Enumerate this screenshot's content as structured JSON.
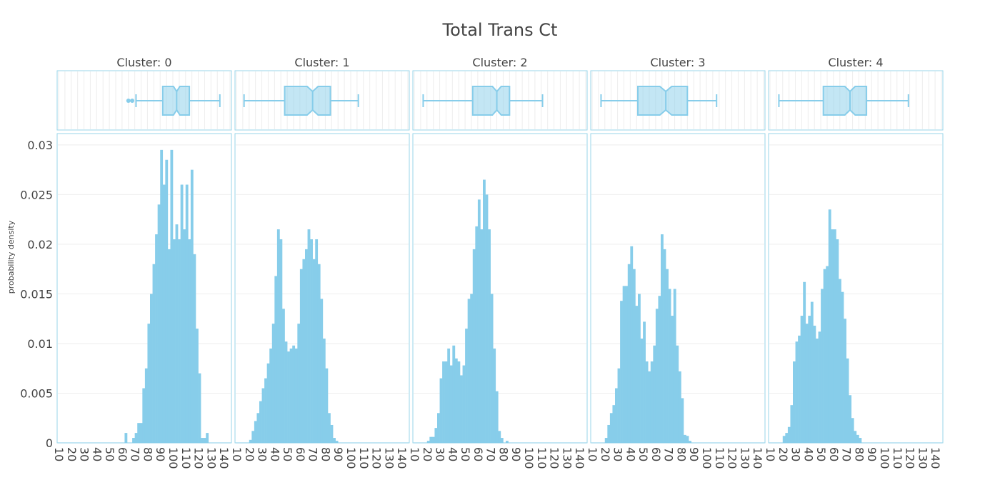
{
  "chart_data": {
    "type": "histogram",
    "title": "Total Trans Ct",
    "ylabel": "probability density",
    "xlabel": "",
    "bar_color": "#87cdea",
    "frame_color": "#99d6ea",
    "grid_color": "#eeeeee",
    "xlim": [
      10,
      145
    ],
    "ylim": [
      0,
      0.031
    ],
    "x_ticks": [
      "10",
      "20",
      "30",
      "40",
      "50",
      "60",
      "70",
      "80",
      "90",
      "100",
      "110",
      "120",
      "130",
      "140"
    ],
    "y_ticks": [
      "0",
      "0.005",
      "0.01",
      "0.015",
      "0.02",
      "0.025",
      "0.03"
    ],
    "panels": [
      {
        "title": "Cluster: 0",
        "bins_start": 10,
        "bin_width": 2,
        "density": [
          0,
          0,
          0,
          0,
          0,
          0,
          0,
          0,
          0,
          0,
          0,
          0,
          0,
          0,
          0,
          0,
          0,
          0,
          0,
          0,
          0,
          0,
          0,
          0,
          0,
          0,
          0.001,
          0,
          0,
          0.0005,
          0.001,
          0.002,
          0.002,
          0.0055,
          0.0075,
          0.012,
          0.015,
          0.018,
          0.021,
          0.024,
          0.0295,
          0.026,
          0.0285,
          0.0195,
          0.0295,
          0.0205,
          0.022,
          0.0205,
          0.026,
          0.0215,
          0.026,
          0.0205,
          0.0275,
          0.019,
          0.0115,
          0.007,
          0.0005,
          0.0005,
          0.001,
          0,
          0,
          0,
          0,
          0,
          0,
          0,
          0,
          0
        ],
        "box": {
          "min": 71,
          "q1": 92,
          "median": 103,
          "q3": 113,
          "max": 137,
          "outliers": [
            65,
            68
          ]
        }
      },
      {
        "title": "Cluster: 1",
        "bins_start": 10,
        "bin_width": 2,
        "density": [
          0,
          0,
          0,
          0,
          0,
          0.0003,
          0.0012,
          0.0022,
          0.003,
          0.0042,
          0.0055,
          0.0065,
          0.008,
          0.0095,
          0.012,
          0.0168,
          0.0215,
          0.0205,
          0.0135,
          0.0102,
          0.0092,
          0.0095,
          0.0098,
          0.0095,
          0.012,
          0.0175,
          0.0185,
          0.0195,
          0.0215,
          0.0205,
          0.0185,
          0.0205,
          0.018,
          0.0145,
          0.0105,
          0.0075,
          0.003,
          0.0018,
          0.0005,
          0.0002,
          0,
          0,
          0,
          0,
          0,
          0,
          0,
          0,
          0,
          0,
          0,
          0,
          0,
          0,
          0,
          0,
          0,
          0,
          0,
          0,
          0,
          0,
          0,
          0,
          0,
          0,
          0,
          0,
          0
        ],
        "box": {
          "min": 16,
          "q1": 48,
          "median": 70,
          "q3": 84,
          "max": 106,
          "outliers": []
        }
      },
      {
        "title": "Cluster: 2",
        "bins_start": 10,
        "bin_width": 2,
        "density": [
          0,
          0,
          0,
          0,
          0,
          0.0002,
          0.0006,
          0.0006,
          0.0015,
          0.003,
          0.0065,
          0.0082,
          0.0082,
          0.0095,
          0.0078,
          0.0098,
          0.0085,
          0.0082,
          0.0068,
          0.0078,
          0.0115,
          0.0145,
          0.015,
          0.0195,
          0.0218,
          0.0245,
          0.0215,
          0.0265,
          0.025,
          0.0215,
          0.015,
          0.0095,
          0.0052,
          0.0012,
          0.0005,
          0,
          0.0002,
          0,
          0,
          0,
          0,
          0,
          0,
          0,
          0,
          0,
          0,
          0,
          0,
          0,
          0,
          0,
          0,
          0,
          0,
          0,
          0,
          0,
          0,
          0,
          0,
          0,
          0,
          0,
          0,
          0,
          0,
          0,
          0
        ],
        "box": {
          "min": 17,
          "q1": 56,
          "median": 75,
          "q3": 85,
          "max": 111,
          "outliers": []
        }
      },
      {
        "title": "Cluster: 3",
        "bins_start": 10,
        "bin_width": 2,
        "density": [
          0,
          0,
          0,
          0,
          0,
          0.0005,
          0.0018,
          0.003,
          0.0038,
          0.0055,
          0.0075,
          0.0143,
          0.0158,
          0.0158,
          0.018,
          0.0198,
          0.0175,
          0.0138,
          0.015,
          0.0105,
          0.0122,
          0.0082,
          0.0072,
          0.0082,
          0.0098,
          0.0135,
          0.0148,
          0.021,
          0.0195,
          0.0175,
          0.0155,
          0.0128,
          0.0155,
          0.0098,
          0.0072,
          0.0045,
          0.0008,
          0.0007,
          0.0002,
          0,
          0,
          0,
          0,
          0,
          0,
          0,
          0,
          0,
          0,
          0,
          0,
          0,
          0,
          0,
          0,
          0,
          0,
          0,
          0,
          0,
          0,
          0,
          0,
          0,
          0,
          0,
          0,
          0,
          0
        ],
        "box": {
          "min": 17,
          "q1": 46,
          "median": 68,
          "q3": 85,
          "max": 108,
          "outliers": []
        }
      },
      {
        "title": "Cluster: 4",
        "bins_start": 10,
        "bin_width": 2,
        "density": [
          0,
          0,
          0,
          0,
          0,
          0.0007,
          0.001,
          0.0016,
          0.0038,
          0.0082,
          0.0102,
          0.0108,
          0.0128,
          0.0162,
          0.012,
          0.0128,
          0.0142,
          0.0118,
          0.0105,
          0.0112,
          0.0155,
          0.0175,
          0.0178,
          0.0235,
          0.0215,
          0.0215,
          0.0205,
          0.0165,
          0.0152,
          0.0125,
          0.0085,
          0.0048,
          0.0025,
          0.0012,
          0.0008,
          0.0005,
          0,
          0,
          0,
          0,
          0,
          0,
          0,
          0,
          0,
          0,
          0,
          0,
          0,
          0,
          0,
          0,
          0,
          0,
          0,
          0,
          0,
          0,
          0,
          0,
          0,
          0,
          0,
          0,
          0,
          0,
          0,
          0,
          0
        ],
        "box": {
          "min": 17,
          "q1": 52,
          "median": 73,
          "q3": 86,
          "max": 119,
          "outliers": []
        }
      }
    ]
  }
}
